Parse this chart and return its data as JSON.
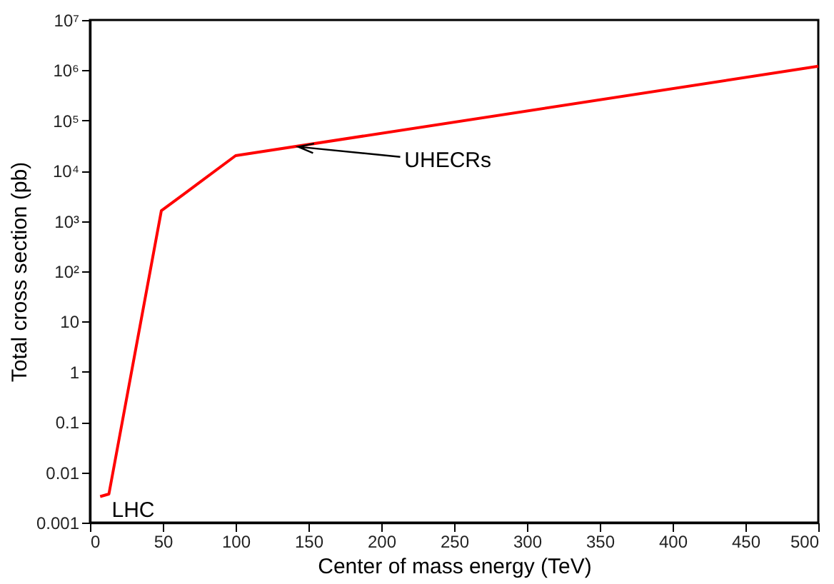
{
  "chart_data": {
    "type": "line",
    "x": [
      7,
      13,
      49,
      100,
      500
    ],
    "series": [
      {
        "color": "#ff0000",
        "values": [
          0.0033,
          0.0037,
          1600,
          20000,
          1200000
        ]
      }
    ],
    "xlabel": "Center of mass energy (TeV)",
    "ylabel": "Total cross  section (pb)",
    "xlim": [
      0,
      500
    ],
    "xticks": [
      0,
      50,
      100,
      150,
      200,
      250,
      300,
      350,
      400,
      450,
      500
    ],
    "ylim": [
      0.001,
      10000000
    ],
    "yticks": [
      0.001,
      0.01,
      0.1,
      1,
      10,
      {
        "value": 100,
        "label": "10²"
      },
      {
        "value": 1000,
        "label": "10³"
      },
      {
        "value": 10000,
        "label": "10⁴"
      },
      {
        "value": 100000,
        "label": "10⁵"
      },
      {
        "value": 1000000,
        "label": "10⁶"
      },
      {
        "value": 10000000,
        "label": "10⁷"
      }
    ],
    "log": "y",
    "grid": false,
    "marker": "none",
    "line_style": "solid",
    "annotations": [
      {
        "text": "UHECRs",
        "x": 143,
        "y": 30000
      },
      {
        "text": "LHC",
        "x": 13,
        "y": 0.0037
      }
    ]
  }
}
